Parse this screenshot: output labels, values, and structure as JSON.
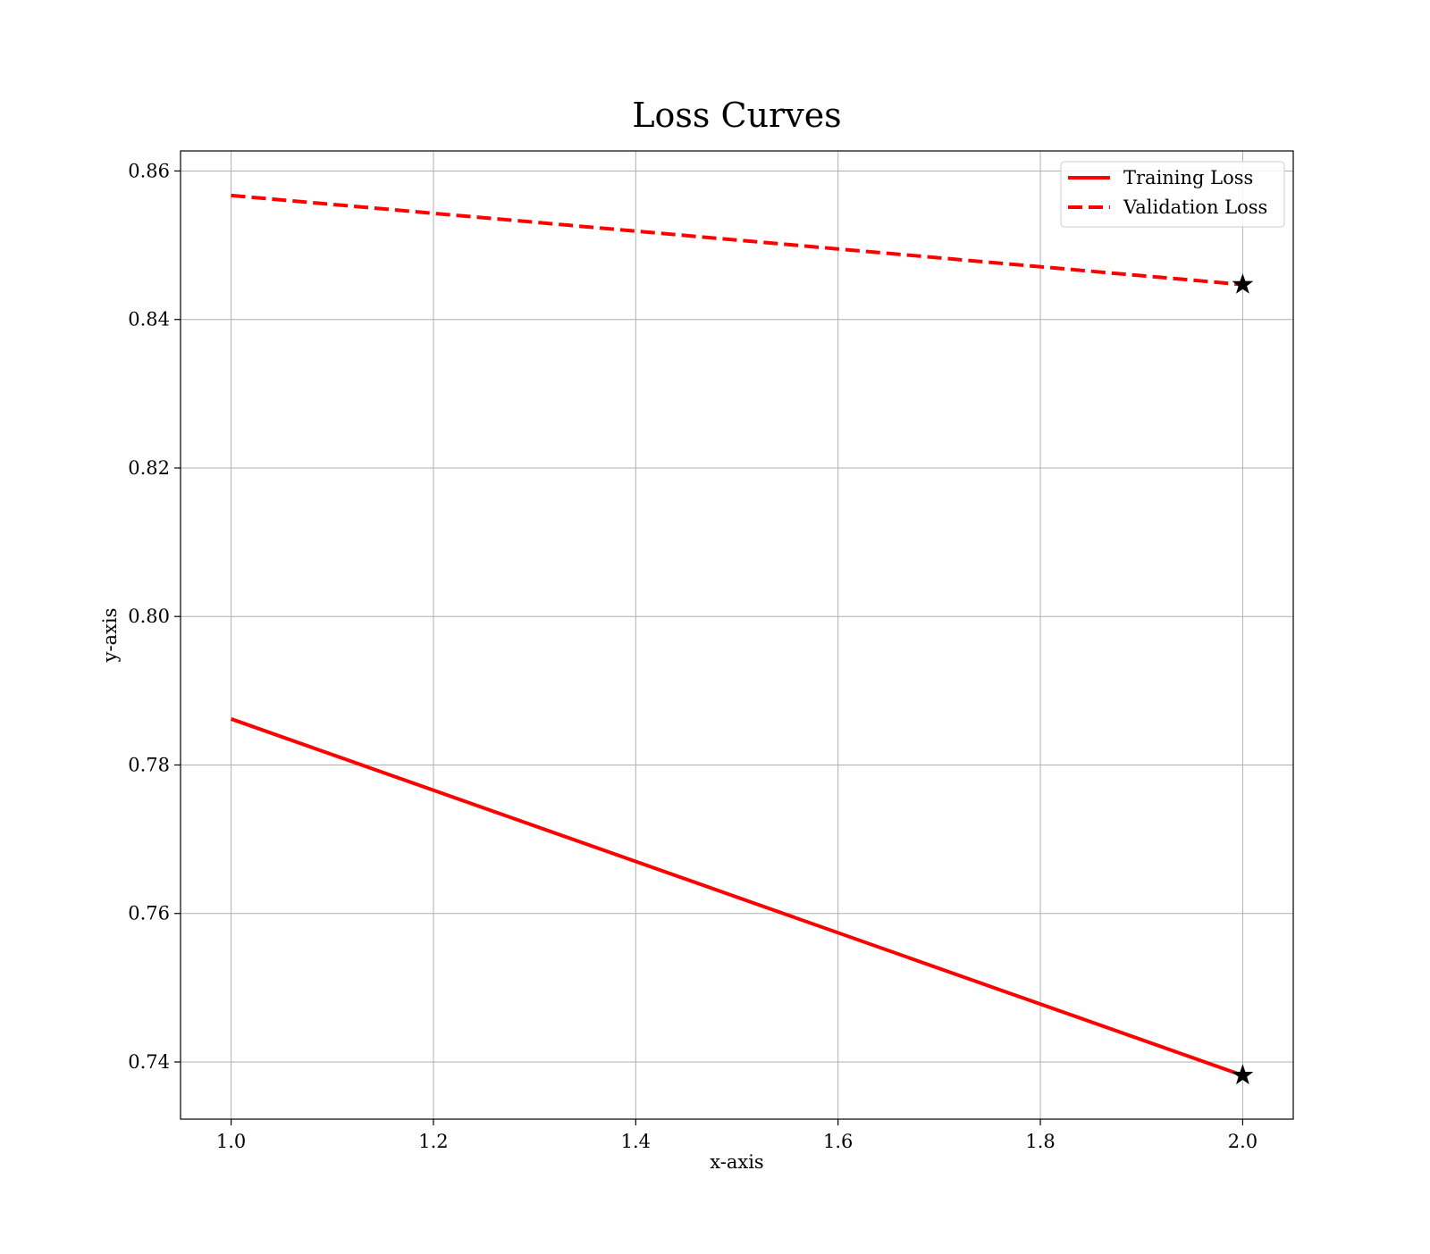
{
  "chart_data": {
    "type": "line",
    "title": "Loss Curves",
    "xlabel": "x-axis",
    "ylabel": "y-axis",
    "xlim": [
      0.95,
      2.05
    ],
    "ylim": [
      0.7323,
      0.8627
    ],
    "grid": true,
    "legend_position": "top-right",
    "x_ticks": [
      1.0,
      1.2,
      1.4,
      1.6,
      1.8,
      2.0
    ],
    "x_tick_labels": [
      "1.0",
      "1.2",
      "1.4",
      "1.6",
      "1.8",
      "2.0"
    ],
    "y_ticks": [
      0.74,
      0.76,
      0.78,
      0.8,
      0.82,
      0.84,
      0.86
    ],
    "y_tick_labels": [
      "0.74",
      "0.76",
      "0.78",
      "0.80",
      "0.82",
      "0.84",
      "0.86"
    ],
    "series": [
      {
        "name": "Training Loss",
        "x": [
          1,
          2
        ],
        "values": [
          0.7862,
          0.7382
        ],
        "color": "#ff0000",
        "style": "solid",
        "end_marker": "star"
      },
      {
        "name": "Validation Loss",
        "x": [
          1,
          2
        ],
        "values": [
          0.8567,
          0.8447
        ],
        "color": "#ff0000",
        "style": "dashed",
        "end_marker": "star"
      }
    ]
  }
}
